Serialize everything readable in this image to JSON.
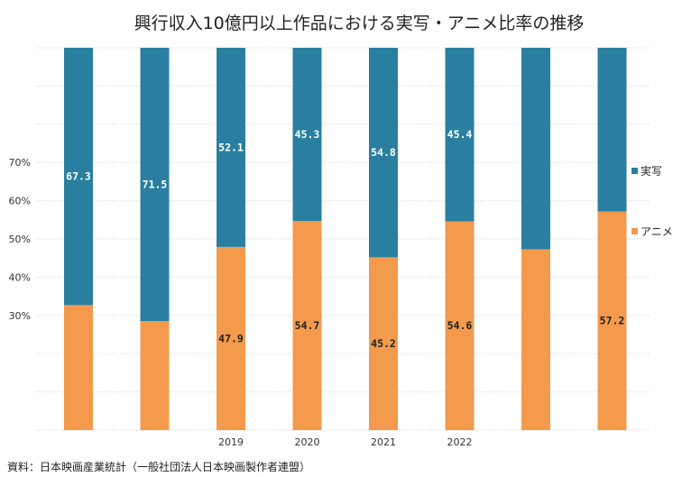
{
  "chart_data": {
    "type": "bar",
    "stacked": true,
    "title": "興行収入10億円以上作品における実写・アニメ比率の推移",
    "xlabel": "",
    "ylabel": "",
    "ylim": [
      0,
      100
    ],
    "y_ticks": [
      "",
      "",
      "",
      "30%",
      "40%",
      "50%",
      "60%",
      "70%",
      "",
      "",
      ""
    ],
    "grid": true,
    "categories": [
      "",
      "",
      "2019",
      "2020",
      "2021",
      "2022",
      "",
      ""
    ],
    "series": [
      {
        "name": "アニメ",
        "color": "#f39a4c",
        "values": [
          32.7,
          28.5,
          47.9,
          54.7,
          45.2,
          54.6,
          47.3,
          57.2
        ],
        "labels": [
          "",
          "",
          "47.9",
          "54.7",
          "45.2",
          "54.6",
          "",
          "57.2"
        ]
      },
      {
        "name": "実写",
        "color": "#2a7fa0",
        "values": [
          67.3,
          71.5,
          52.1,
          45.3,
          54.8,
          45.4,
          52.7,
          42.8
        ],
        "labels": [
          "67.3",
          "71.5",
          "52.1",
          "45.3",
          "54.8",
          "45.4",
          "",
          ""
        ]
      }
    ],
    "legend": {
      "position": "right",
      "order": [
        "実写",
        "アニメ"
      ]
    },
    "source": "資料：日本映画産業統計（一般社団法人日本映画製作者連盟）"
  }
}
